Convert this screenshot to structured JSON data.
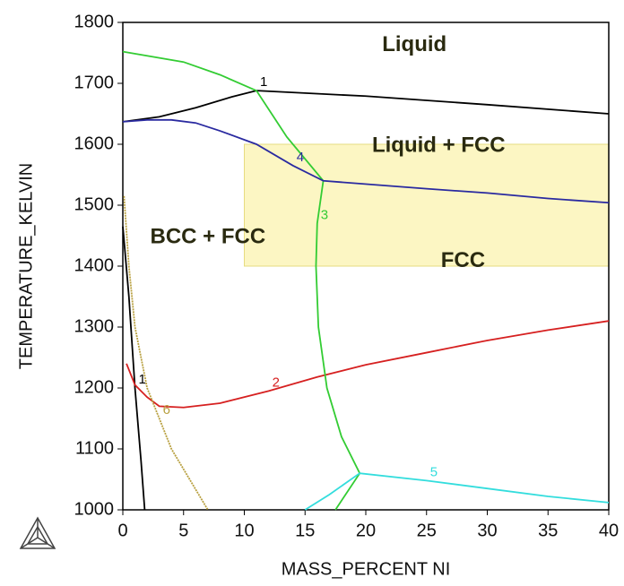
{
  "chart_data": {
    "type": "line",
    "x_label": "MASS_PERCENT NI",
    "y_label": "TEMPERATURE_KELVIN",
    "xlim": [
      0,
      40
    ],
    "ylim": [
      1000,
      1800
    ],
    "xticks": [
      0,
      5,
      10,
      15,
      20,
      25,
      30,
      35,
      40
    ],
    "yticks": [
      1000,
      1100,
      1200,
      1300,
      1400,
      1500,
      1600,
      1700,
      1800
    ],
    "highlight": {
      "x": [
        10,
        40
      ],
      "y": [
        1400,
        1600
      ],
      "color": "#fbf5b8"
    },
    "annotations": [
      {
        "text": "Liquid",
        "x": 24,
        "y": 1762
      },
      {
        "text": "Liquid + FCC",
        "x": 26,
        "y": 1597
      },
      {
        "text": "BCC + FCC",
        "x": 7,
        "y": 1447
      },
      {
        "text": "FCC",
        "x": 28,
        "y": 1408
      }
    ],
    "series": [
      {
        "name": "1",
        "color": "#000000",
        "x": [
          0,
          3,
          6,
          9,
          11,
          20,
          30,
          40,
          null,
          0,
          0.5,
          1,
          1.5,
          1.8
        ],
        "values": [
          1637,
          1645,
          1660,
          1678,
          1688,
          1679,
          1665,
          1650,
          null,
          1465,
          1350,
          1200,
          1080,
          1000
        ]
      },
      {
        "name": "2",
        "color": "#d62020",
        "x": [
          0.3,
          1,
          2,
          3,
          5,
          8,
          12,
          16,
          20,
          25,
          30,
          35,
          40
        ],
        "values": [
          1240,
          1205,
          1185,
          1170,
          1168,
          1175,
          1195,
          1218,
          1238,
          1258,
          1278,
          1295,
          1310
        ]
      },
      {
        "name": "3",
        "color": "#33cc33",
        "x": [
          0,
          5,
          8,
          11,
          13.5,
          16.5,
          16,
          15.9,
          16.1,
          16.8,
          18,
          19.5,
          17.5
        ],
        "values": [
          1752,
          1735,
          1714,
          1688,
          1612,
          1540,
          1470,
          1400,
          1300,
          1200,
          1120,
          1060,
          1000
        ]
      },
      {
        "name": "4",
        "color": "#2a2aa0",
        "x": [
          0,
          2,
          4,
          6,
          8,
          11,
          14,
          16.5,
          25,
          30,
          35,
          40
        ],
        "values": [
          1637,
          1640,
          1640,
          1635,
          1622,
          1600,
          1565,
          1540,
          1527,
          1520,
          1511,
          1504
        ]
      },
      {
        "name": "5",
        "color": "#33dddd",
        "x": [
          15,
          17,
          19.5,
          25,
          30,
          35,
          40
        ],
        "values": [
          1000,
          1025,
          1060,
          1048,
          1035,
          1022,
          1012
        ]
      },
      {
        "name": "6",
        "color": "#b8a040",
        "dashed": true,
        "x": [
          0.1,
          0.5,
          1,
          2,
          3,
          4,
          5.5,
          7
        ],
        "values": [
          1515,
          1400,
          1300,
          1200,
          1150,
          1100,
          1050,
          1000
        ]
      }
    ]
  }
}
